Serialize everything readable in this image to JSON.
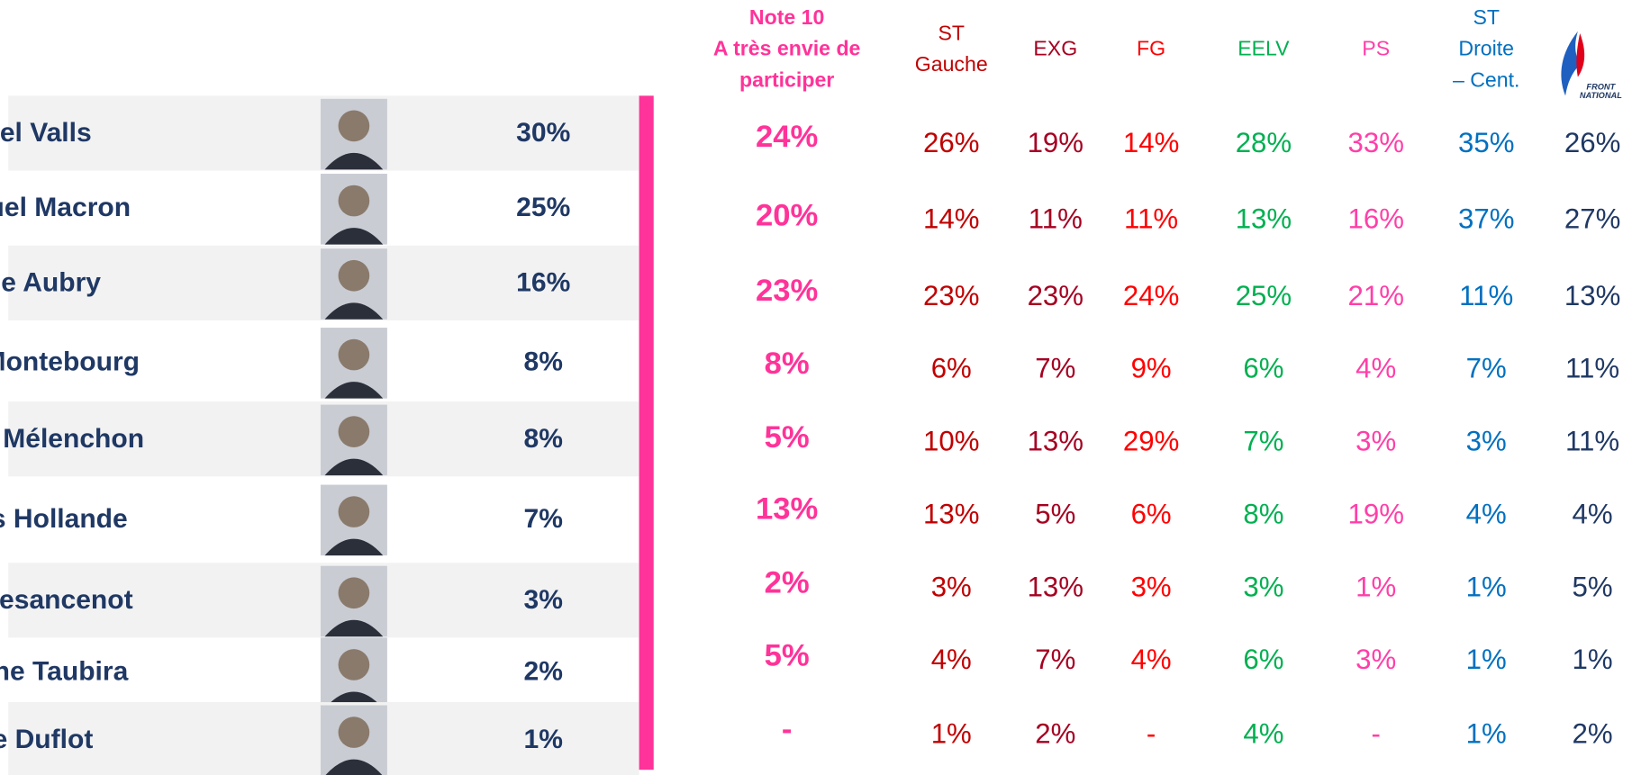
{
  "columns": [
    {
      "header": [
        "Note 10",
        "A très envie de",
        "participer"
      ],
      "color": "#ff3399",
      "bold": true
    },
    {
      "header": [
        "ST",
        "Gauche"
      ],
      "color": "#c00000"
    },
    {
      "header": [
        "EXG"
      ],
      "color": "#a50021"
    },
    {
      "header": [
        "FG"
      ],
      "color": "#ff0000"
    },
    {
      "header": [
        "EELV"
      ],
      "color": "#00b050"
    },
    {
      "header": [
        "PS"
      ],
      "color": "#ff3fa8"
    },
    {
      "header": [
        "ST",
        "Droite",
        "– Cent."
      ],
      "color": "#0070c0"
    },
    {
      "header": [
        "FRONT",
        "NATIONAL"
      ],
      "color": "#1f3864",
      "logo": true
    }
  ],
  "rows": [
    {
      "name": "Manuel Valls",
      "overall": "30%",
      "values": [
        "24%",
        "26%",
        "19%",
        "14%",
        "28%",
        "33%",
        "35%",
        "26%"
      ]
    },
    {
      "name": "Emmanuel Macron",
      "overall": "25%",
      "values": [
        "20%",
        "14%",
        "11%",
        "11%",
        "13%",
        "16%",
        "37%",
        "27%"
      ]
    },
    {
      "name": "Martine Aubry",
      "overall": "16%",
      "values": [
        "23%",
        "23%",
        "23%",
        "24%",
        "25%",
        "21%",
        "11%",
        "13%"
      ]
    },
    {
      "name": "Arnaud Montebourg",
      "overall": "8%",
      "values": [
        "8%",
        "6%",
        "7%",
        "9%",
        "6%",
        "4%",
        "7%",
        "11%"
      ]
    },
    {
      "name": "Jean-Luc Mélenchon",
      "overall": "8%",
      "values": [
        "5%",
        "10%",
        "13%",
        "29%",
        "7%",
        "3%",
        "3%",
        "11%"
      ]
    },
    {
      "name": "François Hollande",
      "overall": "7%",
      "values": [
        "13%",
        "13%",
        "5%",
        "6%",
        "8%",
        "19%",
        "4%",
        "4%"
      ]
    },
    {
      "name": "Olivier Besancenot",
      "overall": "3%",
      "values": [
        "2%",
        "3%",
        "13%",
        "3%",
        "3%",
        "1%",
        "1%",
        "5%"
      ]
    },
    {
      "name": "Christiane Taubira",
      "overall": "2%",
      "values": [
        "5%",
        "4%",
        "7%",
        "4%",
        "6%",
        "3%",
        "1%",
        "1%"
      ]
    },
    {
      "name": "Cécile Duflot",
      "overall": "1%",
      "values": [
        "-",
        "1%",
        "2%",
        "-",
        "4%",
        "-",
        "1%",
        "2%"
      ]
    }
  ]
}
